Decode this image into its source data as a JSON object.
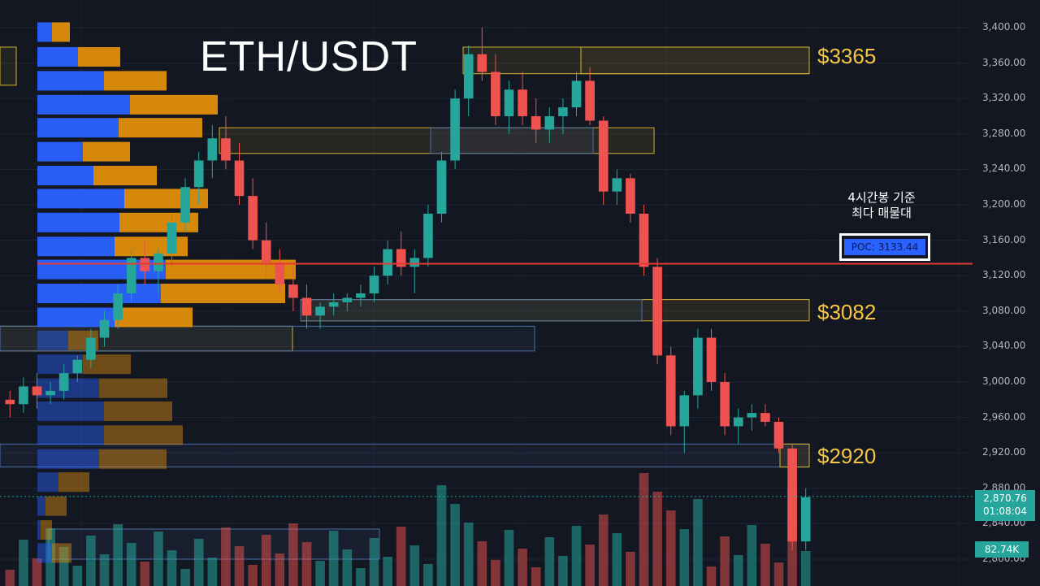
{
  "title": "ETH/USDT",
  "levels": {
    "l3365": "$3365",
    "l3082": "$3082",
    "l2920": "$2920"
  },
  "annotation": {
    "line1": "4시간봉 기준",
    "line2": "최다 매물대"
  },
  "poc_label": "POC: 3133.44",
  "price_axis": [
    "3,400.00",
    "3,360.00",
    "3,320.00",
    "3,280.00",
    "3,240.00",
    "3,200.00",
    "3,160.00",
    "3,120.00",
    "3,080.00",
    "3,040.00",
    "3,000.00",
    "2,960.00",
    "2,920.00",
    "2,880.00",
    "2,840.00",
    "2,800.00"
  ],
  "last_price": "2,870.76",
  "countdown": "01:08:04",
  "volume_label": "82.74K",
  "colors": {
    "up": "#26a69a",
    "down": "#ef5350",
    "vp_blue": "#2962ff",
    "vp_orange": "#e08e0b",
    "poc": "#e53935",
    "zone": "#d4b32f",
    "zone_blue": "#4a6fa5"
  },
  "chart_data": {
    "type": "candlestick",
    "title": "ETH/USDT",
    "ylim": [
      2790,
      3410
    ],
    "poc": 3133.44,
    "levels": [
      3365,
      3082,
      2920
    ],
    "last_price": 2870.76,
    "candles_ohlc": [
      [
        2980,
        2990,
        2960,
        2975
      ],
      [
        2975,
        3005,
        2965,
        2995
      ],
      [
        2995,
        3010,
        2970,
        2985
      ],
      [
        2985,
        3000,
        2975,
        2990
      ],
      [
        2990,
        3020,
        2980,
        3010
      ],
      [
        3010,
        3030,
        3000,
        3025
      ],
      [
        3025,
        3060,
        3015,
        3050
      ],
      [
        3050,
        3080,
        3040,
        3070
      ],
      [
        3070,
        3110,
        3060,
        3100
      ],
      [
        3100,
        3150,
        3090,
        3140
      ],
      [
        3140,
        3160,
        3110,
        3125
      ],
      [
        3125,
        3150,
        3100,
        3145
      ],
      [
        3145,
        3190,
        3130,
        3180
      ],
      [
        3180,
        3230,
        3170,
        3220
      ],
      [
        3220,
        3260,
        3200,
        3250
      ],
      [
        3250,
        3290,
        3230,
        3275
      ],
      [
        3275,
        3300,
        3240,
        3250
      ],
      [
        3250,
        3270,
        3200,
        3210
      ],
      [
        3210,
        3230,
        3150,
        3160
      ],
      [
        3160,
        3180,
        3120,
        3135
      ],
      [
        3135,
        3150,
        3100,
        3110
      ],
      [
        3110,
        3130,
        3080,
        3095
      ],
      [
        3095,
        3110,
        3060,
        3075
      ],
      [
        3075,
        3090,
        3060,
        3085
      ],
      [
        3085,
        3100,
        3075,
        3090
      ],
      [
        3090,
        3100,
        3080,
        3095
      ],
      [
        3095,
        3110,
        3085,
        3100
      ],
      [
        3100,
        3130,
        3090,
        3120
      ],
      [
        3120,
        3160,
        3110,
        3150
      ],
      [
        3150,
        3170,
        3120,
        3130
      ],
      [
        3130,
        3150,
        3100,
        3140
      ],
      [
        3140,
        3200,
        3130,
        3190
      ],
      [
        3190,
        3260,
        3180,
        3250
      ],
      [
        3250,
        3330,
        3240,
        3320
      ],
      [
        3320,
        3380,
        3300,
        3370
      ],
      [
        3370,
        3400,
        3340,
        3350
      ],
      [
        3350,
        3370,
        3290,
        3300
      ],
      [
        3300,
        3340,
        3280,
        3330
      ],
      [
        3330,
        3350,
        3290,
        3300
      ],
      [
        3300,
        3320,
        3270,
        3285
      ],
      [
        3285,
        3310,
        3270,
        3300
      ],
      [
        3300,
        3320,
        3280,
        3310
      ],
      [
        3310,
        3350,
        3300,
        3340
      ],
      [
        3340,
        3355,
        3290,
        3295
      ],
      [
        3295,
        3300,
        3200,
        3215
      ],
      [
        3215,
        3240,
        3200,
        3230
      ],
      [
        3230,
        3235,
        3180,
        3190
      ],
      [
        3190,
        3200,
        3120,
        3130
      ],
      [
        3130,
        3140,
        3020,
        3030
      ],
      [
        3030,
        3040,
        2940,
        2950
      ],
      [
        2950,
        2990,
        2920,
        2985
      ],
      [
        2985,
        3060,
        2970,
        3050
      ],
      [
        3050,
        3060,
        2990,
        3000
      ],
      [
        3000,
        3010,
        2940,
        2950
      ],
      [
        2950,
        2970,
        2930,
        2960
      ],
      [
        2960,
        2975,
        2945,
        2965
      ],
      [
        2965,
        2975,
        2950,
        2955
      ],
      [
        2955,
        2960,
        2920,
        2925
      ],
      [
        2925,
        2930,
        2810,
        2820
      ],
      [
        2820,
        2880,
        2810,
        2870
      ]
    ],
    "volume_profile": [
      {
        "price": 3395,
        "buy": 18,
        "sell": 22
      },
      {
        "price": 3367,
        "buy": 50,
        "sell": 52
      },
      {
        "price": 3340,
        "buy": 82,
        "sell": 77
      },
      {
        "price": 3313,
        "buy": 114,
        "sell": 108
      },
      {
        "price": 3287,
        "buy": 100,
        "sell": 103
      },
      {
        "price": 3260,
        "buy": 56,
        "sell": 58
      },
      {
        "price": 3233,
        "buy": 69,
        "sell": 78
      },
      {
        "price": 3207,
        "buy": 107,
        "sell": 103
      },
      {
        "price": 3180,
        "buy": 101,
        "sell": 97
      },
      {
        "price": 3153,
        "buy": 95,
        "sell": 90
      },
      {
        "price": 3127,
        "buy": 158,
        "sell": 160
      },
      {
        "price": 3100,
        "buy": 152,
        "sell": 153
      },
      {
        "price": 3073,
        "buy": 95,
        "sell": 96
      },
      {
        "price": 3047,
        "buy": 38,
        "sell": 37
      },
      {
        "price": 3020,
        "buy": 56,
        "sell": 59
      },
      {
        "price": 2993,
        "buy": 76,
        "sell": 84
      },
      {
        "price": 2967,
        "buy": 82,
        "sell": 84
      },
      {
        "price": 2940,
        "buy": 82,
        "sell": 97
      },
      {
        "price": 2913,
        "buy": 76,
        "sell": 83
      },
      {
        "price": 2887,
        "buy": 26,
        "sell": 38
      },
      {
        "price": 2860,
        "buy": 10,
        "sell": 26
      },
      {
        "price": 2833,
        "buy": 4,
        "sell": 14
      },
      {
        "price": 2807,
        "buy": 18,
        "sell": 24
      }
    ]
  }
}
